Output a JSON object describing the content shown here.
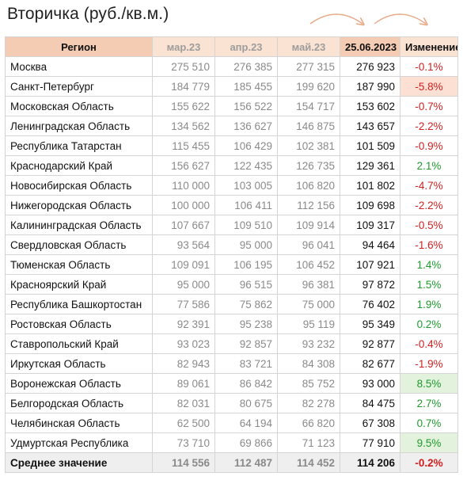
{
  "title": "Вторичка (руб./кв.м.)",
  "columns": {
    "region": "Регион",
    "m1": "мар.23",
    "m2": "апр.23",
    "m3": "май.23",
    "current": "25.06.2023",
    "change": "Изменение"
  },
  "colors": {
    "negative": "#d21f1f",
    "positive": "#1e9a2c",
    "header_primary": "#f4ccb4",
    "header_secondary": "#fbe3d3",
    "arrow": "#e8a886"
  },
  "rows": [
    {
      "region": "Москва",
      "m1": "275 510",
      "m2": "276 385",
      "m3": "277 315",
      "current": "276 923",
      "change": "-0.1%",
      "sign": "neg",
      "highlight": false
    },
    {
      "region": "Санкт-Петербург",
      "m1": "184 779",
      "m2": "185 455",
      "m3": "199 620",
      "current": "187 990",
      "change": "-5.8%",
      "sign": "neg",
      "highlight": true
    },
    {
      "region": "Московская Область",
      "m1": "155 622",
      "m2": "156 522",
      "m3": "154 717",
      "current": "153 602",
      "change": "-0.7%",
      "sign": "neg",
      "highlight": false
    },
    {
      "region": "Ленинградская Область",
      "m1": "134 562",
      "m2": "136 627",
      "m3": "146 875",
      "current": "143 657",
      "change": "-2.2%",
      "sign": "neg",
      "highlight": false
    },
    {
      "region": "Республика Татарстан",
      "m1": "115 455",
      "m2": "106 429",
      "m3": "102 381",
      "current": "101 509",
      "change": "-0.9%",
      "sign": "neg",
      "highlight": false
    },
    {
      "region": "Краснодарский Край",
      "m1": "156 627",
      "m2": "122 435",
      "m3": "126 735",
      "current": "129 361",
      "change": "2.1%",
      "sign": "pos",
      "highlight": false
    },
    {
      "region": "Новосибирская Область",
      "m1": "110 000",
      "m2": "103 005",
      "m3": "106 820",
      "current": "101 802",
      "change": "-4.7%",
      "sign": "neg",
      "highlight": false
    },
    {
      "region": "Нижегородская Область",
      "m1": "100 000",
      "m2": "106 411",
      "m3": "112 156",
      "current": "109 698",
      "change": "-2.2%",
      "sign": "neg",
      "highlight": false
    },
    {
      "region": "Калининградская Область",
      "m1": "107 667",
      "m2": "109 510",
      "m3": "109 914",
      "current": "109 317",
      "change": "-0.5%",
      "sign": "neg",
      "highlight": false
    },
    {
      "region": "Свердловская Область",
      "m1": "93 564",
      "m2": "95 000",
      "m3": "96 041",
      "current": "94 464",
      "change": "-1.6%",
      "sign": "neg",
      "highlight": false
    },
    {
      "region": "Тюменская Область",
      "m1": "109 091",
      "m2": "106 195",
      "m3": "106 452",
      "current": "107 921",
      "change": "1.4%",
      "sign": "pos",
      "highlight": false
    },
    {
      "region": "Красноярский Край",
      "m1": "95 000",
      "m2": "96 515",
      "m3": "96 381",
      "current": "97 872",
      "change": "1.5%",
      "sign": "pos",
      "highlight": false
    },
    {
      "region": "Республика Башкортостан",
      "m1": "77 586",
      "m2": "75 862",
      "m3": "75 000",
      "current": "76 402",
      "change": "1.9%",
      "sign": "pos",
      "highlight": false
    },
    {
      "region": "Ростовская Область",
      "m1": "92 391",
      "m2": "95 238",
      "m3": "95 119",
      "current": "95 349",
      "change": "0.2%",
      "sign": "pos",
      "highlight": false
    },
    {
      "region": "Ставропольский Край",
      "m1": "93 023",
      "m2": "92 857",
      "m3": "93 232",
      "current": "92 877",
      "change": "-0.4%",
      "sign": "neg",
      "highlight": false
    },
    {
      "region": "Иркутская Область",
      "m1": "82 943",
      "m2": "83 721",
      "m3": "84 308",
      "current": "82 677",
      "change": "-1.9%",
      "sign": "neg",
      "highlight": false
    },
    {
      "region": "Воронежская Область",
      "m1": "89 061",
      "m2": "86 842",
      "m3": "85 752",
      "current": "93 000",
      "change": "8.5%",
      "sign": "pos",
      "highlight": true
    },
    {
      "region": "Белгородская Область",
      "m1": "82 031",
      "m2": "80 675",
      "m3": "82 278",
      "current": "84 475",
      "change": "2.7%",
      "sign": "pos",
      "highlight": false
    },
    {
      "region": "Челябинская Область",
      "m1": "62 500",
      "m2": "64 194",
      "m3": "66 820",
      "current": "67 308",
      "change": "0.7%",
      "sign": "pos",
      "highlight": false
    },
    {
      "region": "Удмуртская Республика",
      "m1": "73 710",
      "m2": "69 866",
      "m3": "71 123",
      "current": "77 910",
      "change": "9.5%",
      "sign": "pos",
      "highlight": true
    }
  ],
  "average": {
    "region": "Среднее значение",
    "m1": "114 556",
    "m2": "112 487",
    "m3": "114 452",
    "current": "114 206",
    "change": "-0.2%",
    "sign": "neg"
  }
}
